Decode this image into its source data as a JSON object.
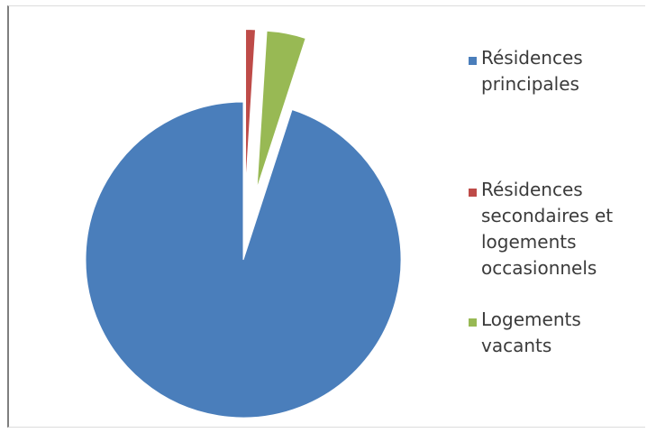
{
  "chart_data": {
    "type": "pie",
    "title": "",
    "categories": [
      "Résidences principales",
      "Résidences secondaires et logements occasionnels",
      "Logements vacants"
    ],
    "values": [
      95.0,
      1.0,
      4.0
    ],
    "exploded": true,
    "legend_position": "right",
    "colors": [
      "#4a7ebb",
      "#be4b48",
      "#98b954"
    ]
  },
  "legend": {
    "items": [
      {
        "label": "Résidences\nprincipales"
      },
      {
        "label": "Résidences\nsecondaires et\nlogements\noccasionnels"
      },
      {
        "label": "Logements\nvacants"
      }
    ]
  }
}
